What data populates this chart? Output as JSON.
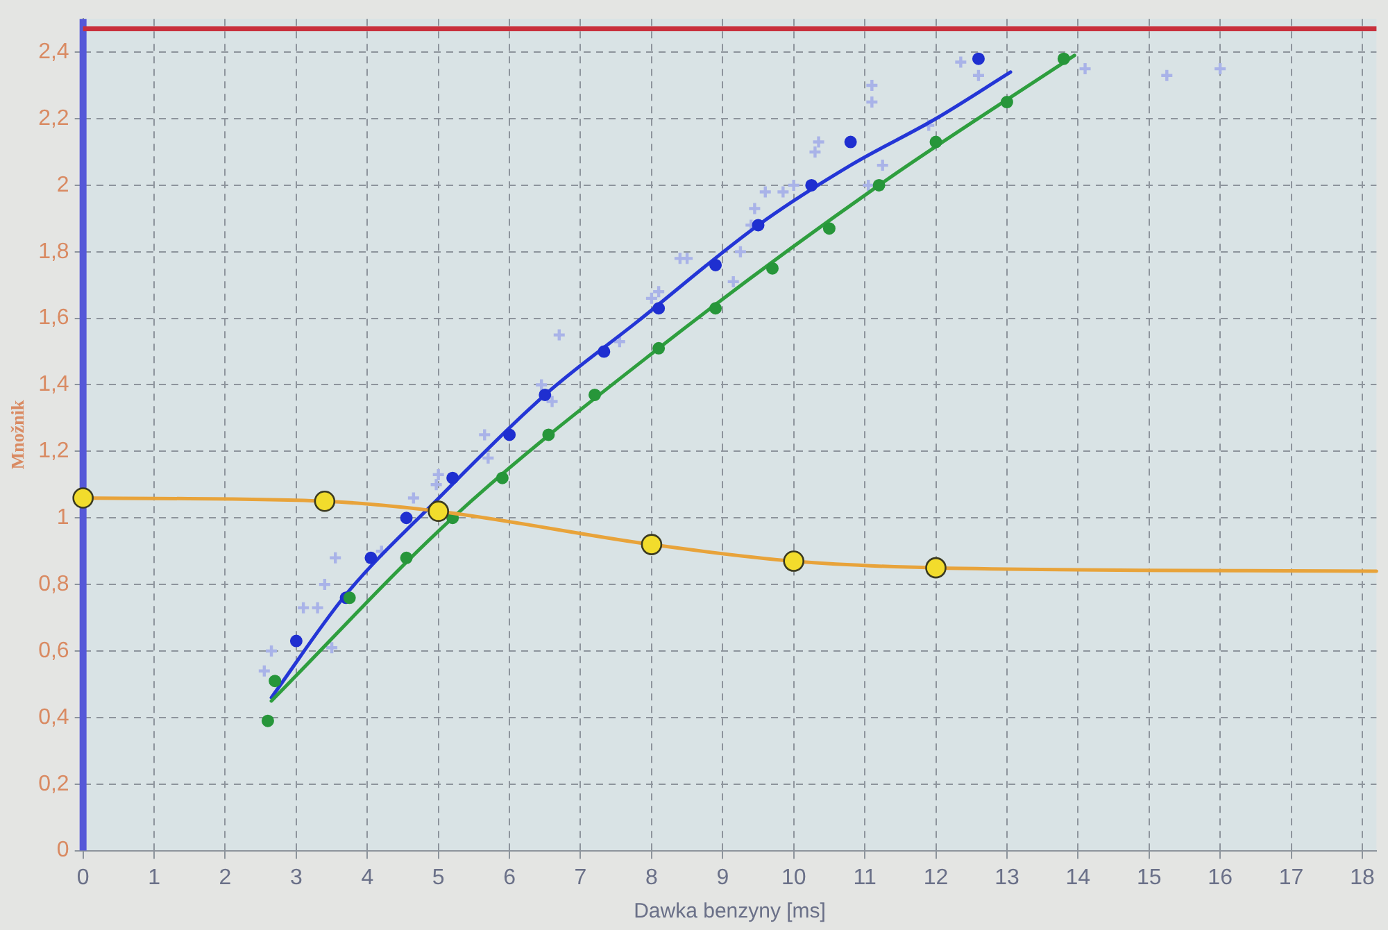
{
  "chart_data": {
    "type": "scatter",
    "xlabel": "Dawka benzyny [ms]",
    "ylabel": "Množnik",
    "xlim": [
      0,
      18.2
    ],
    "xticks": [
      0,
      1,
      2,
      3,
      4,
      5,
      6,
      7,
      8,
      9,
      10,
      11,
      12,
      13,
      14,
      15,
      16,
      17,
      18
    ],
    "ylim": [
      0,
      2.5
    ],
    "yticks": [
      0,
      {
        "value": 0.2,
        "label": "0,2"
      },
      {
        "value": 0.4,
        "label": "0,4"
      },
      {
        "value": 0.6,
        "label": "0,6"
      },
      {
        "value": 0.8,
        "label": "0,8"
      },
      1,
      {
        "value": 1.2,
        "label": "1,2"
      },
      {
        "value": 1.4,
        "label": "1,4"
      },
      {
        "value": 1.6,
        "label": "1,6"
      },
      {
        "value": 1.8,
        "label": "1,8"
      },
      2,
      {
        "value": 2.2,
        "label": "2,2"
      },
      {
        "value": 2.4,
        "label": "2,4"
      }
    ],
    "grid": true,
    "ref_lines": [
      {
        "axis": "x",
        "value": 0,
        "color": "#5558d8"
      },
      {
        "axis": "y",
        "value": 2.47,
        "color": "#c8303c"
      }
    ],
    "series": [
      {
        "color": "#a9b3e8",
        "marker": "cross",
        "x": [
          12.35,
          12.6,
          11.1,
          11.1,
          10.35,
          10.3,
          10.0,
          9.85,
          9.6,
          9.45,
          9.4,
          9.25,
          8.4,
          8.5,
          9.15,
          8.1,
          8.0,
          11.25,
          11.05,
          11.9,
          14.1,
          15.25,
          16.0,
          6.7,
          7.55,
          6.45,
          6.6,
          5.65,
          5.7,
          5.0,
          4.97,
          4.65,
          4.2,
          3.55,
          3.4,
          3.3,
          3.1,
          3.5,
          2.65,
          2.55
        ],
        "values": [
          2.37,
          2.33,
          2.3,
          2.25,
          2.13,
          2.1,
          2.0,
          1.98,
          1.98,
          1.93,
          1.88,
          1.8,
          1.78,
          1.78,
          1.71,
          1.68,
          1.66,
          2.06,
          2.0,
          2.18,
          2.35,
          2.33,
          2.35,
          1.55,
          1.53,
          1.4,
          1.35,
          1.25,
          1.18,
          1.13,
          1.1,
          1.06,
          0.9,
          0.88,
          0.8,
          0.73,
          0.73,
          0.61,
          0.6,
          0.54
        ]
      },
      {
        "type": "line",
        "color": "#2436d6",
        "marker": "none",
        "x": [
          2.65,
          3.7,
          4.96,
          6.5,
          7.8,
          9.5,
          10.8,
          12.0,
          13.05
        ],
        "values": [
          0.46,
          0.77,
          1.05,
          1.37,
          1.59,
          1.88,
          2.06,
          2.2,
          2.34
        ]
      },
      {
        "color": "#1f2fd0",
        "marker": "circle",
        "x": [
          3.0,
          3.7,
          4.05,
          4.55,
          5.2,
          6.0,
          6.5,
          7.33,
          8.1,
          8.9,
          9.5,
          10.25,
          10.8,
          12.6
        ],
        "values": [
          0.63,
          0.76,
          0.88,
          1.0,
          1.12,
          1.25,
          1.37,
          1.5,
          1.63,
          1.76,
          1.88,
          2.0,
          2.13,
          2.38
        ]
      },
      {
        "type": "line",
        "color": "#2e9e3e",
        "marker": "none",
        "x": [
          2.65,
          5.2,
          8.1,
          11.2,
          13.95
        ],
        "values": [
          0.45,
          1.0,
          1.51,
          2.0,
          2.39
        ]
      },
      {
        "color": "#27963a",
        "marker": "circle",
        "x": [
          2.6,
          2.7,
          3.75,
          4.55,
          5.2,
          5.9,
          6.55,
          7.2,
          8.1,
          8.9,
          9.7,
          10.5,
          11.2,
          12.0,
          13.0,
          13.8
        ],
        "values": [
          0.39,
          0.51,
          0.76,
          0.88,
          1.0,
          1.12,
          1.25,
          1.37,
          1.51,
          1.63,
          1.75,
          1.87,
          2.0,
          2.13,
          2.25,
          2.38
        ]
      },
      {
        "type": "line",
        "color": "#e8a33a",
        "marker": "none",
        "x": [
          0,
          3.4,
          5,
          8,
          10,
          12,
          18.2
        ],
        "values": [
          1.06,
          1.05,
          1.02,
          0.92,
          0.87,
          0.85,
          0.84
        ]
      },
      {
        "color": "#f2dc2c",
        "marker": "circle",
        "x": [
          0,
          3.4,
          5,
          8,
          10,
          12
        ],
        "values": [
          1.06,
          1.05,
          1.02,
          0.92,
          0.87,
          0.85
        ]
      }
    ]
  }
}
